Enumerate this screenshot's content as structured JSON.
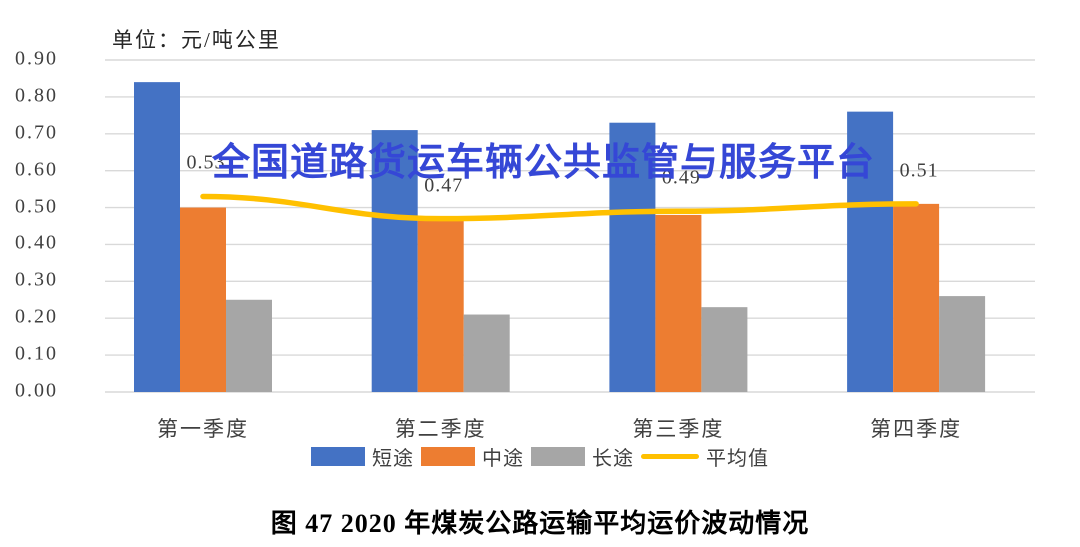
{
  "page": {
    "unit_label": "单位：元/吨公里",
    "watermark": "全国道路货运车辆公共监管与服务平台",
    "caption": "图 47 2020 年煤炭公路运输平均运价波动情况"
  },
  "colors": {
    "short_haul_blue": "#4472C4",
    "mid_haul_orange": "#ED7D31",
    "long_haul_gray": "#A6A6A6",
    "average_yellow": "#FFC000",
    "gridline": "#D9D9D9",
    "axis_text": "#404040",
    "watermark_blue": "#3547D6"
  },
  "chart_data": {
    "type": "bar",
    "title": "图 47 2020 年煤炭公路运输平均运价波动情况",
    "unit": "单位：元/吨公里",
    "categories": [
      "第一季度",
      "第二季度",
      "第三季度",
      "第四季度"
    ],
    "series": [
      {
        "name": "短途",
        "kind": "bar",
        "color": "#4472C4",
        "values": [
          0.84,
          0.71,
          0.73,
          0.76
        ]
      },
      {
        "name": "中途",
        "kind": "bar",
        "color": "#ED7D31",
        "values": [
          0.5,
          0.47,
          0.48,
          0.51
        ]
      },
      {
        "name": "长途",
        "kind": "bar",
        "color": "#A6A6A6",
        "values": [
          0.25,
          0.21,
          0.23,
          0.26
        ]
      },
      {
        "name": "平均值",
        "kind": "line",
        "color": "#FFC000",
        "values": [
          0.53,
          0.47,
          0.49,
          0.51
        ],
        "point_labels": [
          "0.53",
          "0.47",
          "0.49",
          "0.51"
        ]
      }
    ],
    "ylim": [
      0,
      0.9
    ],
    "ytick_step": 0.1,
    "ytick_labels": [
      "0.00",
      "0.10",
      "0.20",
      "0.30",
      "0.40",
      "0.50",
      "0.60",
      "0.70",
      "0.80",
      "0.90"
    ],
    "grid": true,
    "legend_position": "bottom"
  }
}
